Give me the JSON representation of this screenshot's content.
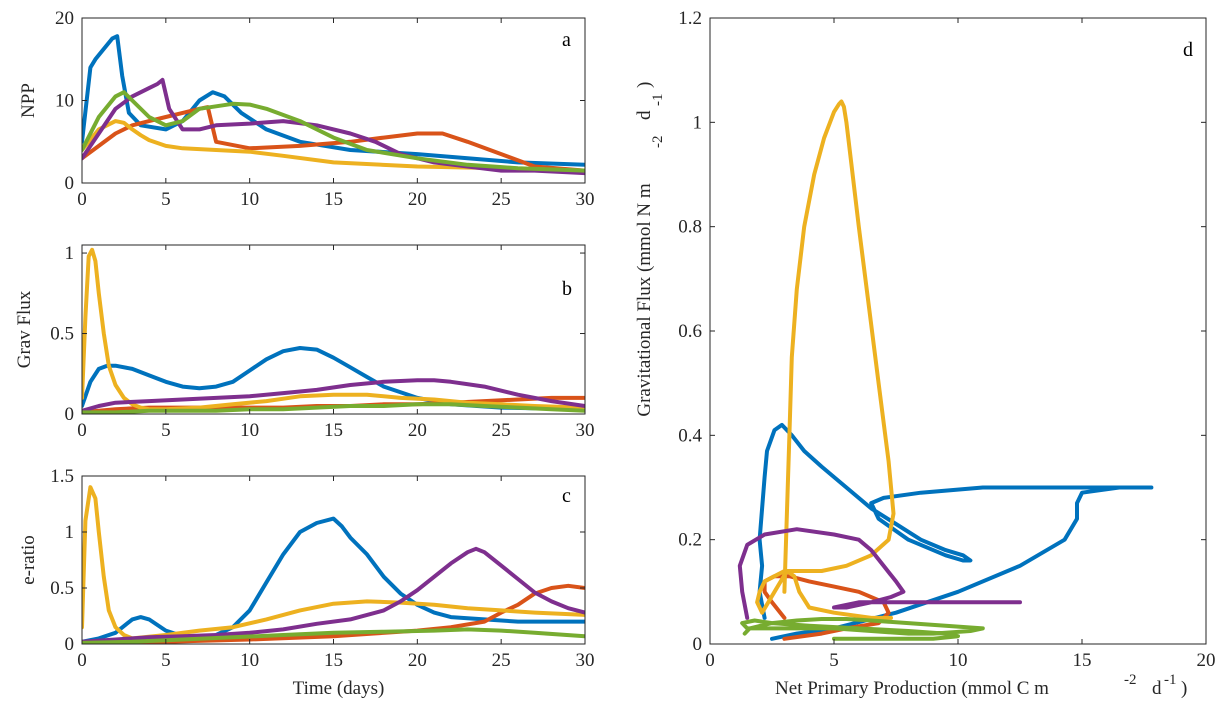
{
  "colors": {
    "blue": "#0072BD",
    "orange": "#D95319",
    "yellow": "#EDB120",
    "purple": "#7E2F8E",
    "green": "#77AC30"
  },
  "chart_data": [
    {
      "id": "a",
      "type": "line",
      "panel_label": "a",
      "ylabel": "NPP",
      "xlabel": "",
      "xlim": [
        0,
        30
      ],
      "ylim": [
        0,
        20
      ],
      "xticks": [
        0,
        5,
        10,
        15,
        20,
        25,
        30
      ],
      "yticks": [
        0,
        10,
        20
      ],
      "series": [
        {
          "color": "blue",
          "x": [
            0,
            0.5,
            0.8,
            1.2,
            1.8,
            2.1,
            2.4,
            2.8,
            3.5,
            5,
            6,
            7,
            7.8,
            8.5,
            9.5,
            11,
            13,
            16,
            20,
            23,
            26,
            30
          ],
          "y": [
            5,
            14,
            15,
            16,
            17.5,
            17.8,
            13,
            8.5,
            7,
            6.5,
            7.5,
            10,
            11,
            10.5,
            8.5,
            6.5,
            5,
            4,
            3.5,
            3,
            2.5,
            2.2
          ]
        },
        {
          "color": "orange",
          "x": [
            0,
            1,
            2,
            3,
            4,
            5,
            6,
            7,
            7.5,
            8,
            10,
            13,
            16,
            18,
            20,
            21.5,
            23,
            25,
            27,
            30
          ],
          "y": [
            3,
            4.5,
            6,
            7,
            7.5,
            8,
            8.5,
            9,
            9.2,
            5,
            4.2,
            4.5,
            5,
            5.5,
            6,
            6,
            5,
            3.5,
            2,
            1.5
          ]
        },
        {
          "color": "yellow",
          "x": [
            0,
            1,
            2,
            2.5,
            3,
            3.5,
            4,
            5,
            6,
            8,
            10,
            12,
            15,
            20,
            25,
            30
          ],
          "y": [
            4,
            6.5,
            7.5,
            7.3,
            6.5,
            5.8,
            5.2,
            4.5,
            4.2,
            4,
            3.8,
            3.3,
            2.5,
            2,
            1.8,
            1.5
          ]
        },
        {
          "color": "purple",
          "x": [
            0,
            1,
            2,
            3,
            4,
            4.5,
            4.8,
            5.2,
            6,
            7,
            8,
            10,
            12,
            14,
            16,
            17.5,
            19,
            21,
            23,
            25,
            27,
            30
          ],
          "y": [
            3,
            6,
            9,
            10.5,
            11.5,
            12,
            12.5,
            9,
            6.5,
            6.5,
            7,
            7.2,
            7.5,
            7,
            6,
            5,
            3.5,
            2.5,
            2,
            1.5,
            1.5,
            1.2
          ]
        },
        {
          "color": "green",
          "x": [
            0,
            1,
            2,
            2.5,
            3,
            4,
            5,
            6,
            7,
            8,
            9,
            10,
            11,
            13,
            15,
            17,
            20,
            23,
            26,
            30
          ],
          "y": [
            4,
            8,
            10.5,
            11,
            10,
            8,
            7,
            7.5,
            9,
            9.3,
            9.6,
            9.5,
            9,
            7.5,
            5.5,
            4,
            3,
            2.2,
            1.8,
            1.5
          ]
        }
      ]
    },
    {
      "id": "b",
      "type": "line",
      "panel_label": "b",
      "ylabel": "Grav Flux",
      "xlabel": "",
      "xlim": [
        0,
        30
      ],
      "ylim": [
        0,
        1.05
      ],
      "xticks": [
        0,
        5,
        10,
        15,
        20,
        25,
        30
      ],
      "yticks": [
        0,
        0.5,
        1
      ],
      "series": [
        {
          "color": "blue",
          "x": [
            0,
            0.5,
            1,
            1.5,
            2,
            3,
            4,
            5,
            6,
            7,
            8,
            9,
            10,
            11,
            12,
            13,
            14,
            15,
            16,
            17,
            18,
            20,
            22,
            25,
            30
          ],
          "y": [
            0.05,
            0.2,
            0.28,
            0.3,
            0.3,
            0.28,
            0.24,
            0.2,
            0.17,
            0.16,
            0.17,
            0.2,
            0.27,
            0.34,
            0.39,
            0.41,
            0.4,
            0.35,
            0.29,
            0.23,
            0.17,
            0.1,
            0.06,
            0.04,
            0.03
          ]
        },
        {
          "color": "orange",
          "x": [
            0,
            1,
            2,
            4,
            6,
            8,
            10,
            12,
            14,
            16,
            18,
            20,
            22,
            24,
            26,
            28,
            30
          ],
          "y": [
            0.01,
            0.02,
            0.03,
            0.04,
            0.04,
            0.04,
            0.04,
            0.04,
            0.05,
            0.05,
            0.06,
            0.06,
            0.07,
            0.08,
            0.09,
            0.1,
            0.1
          ]
        },
        {
          "color": "yellow",
          "x": [
            0,
            0.2,
            0.4,
            0.6,
            0.8,
            1,
            1.3,
            1.6,
            2,
            2.5,
            3,
            3.5,
            4,
            5,
            7,
            9,
            11,
            13,
            15,
            17,
            19,
            21,
            23,
            25,
            27,
            30
          ],
          "y": [
            0.1,
            0.6,
            0.98,
            1.02,
            0.95,
            0.75,
            0.5,
            0.3,
            0.18,
            0.1,
            0.06,
            0.04,
            0.03,
            0.03,
            0.04,
            0.06,
            0.08,
            0.11,
            0.12,
            0.12,
            0.1,
            0.09,
            0.07,
            0.06,
            0.05,
            0.04
          ]
        },
        {
          "color": "purple",
          "x": [
            0,
            1,
            2,
            4,
            6,
            8,
            10,
            12,
            14,
            16,
            18,
            20,
            21,
            22,
            24,
            26,
            28,
            30
          ],
          "y": [
            0.02,
            0.05,
            0.07,
            0.08,
            0.09,
            0.1,
            0.11,
            0.13,
            0.15,
            0.18,
            0.2,
            0.21,
            0.21,
            0.2,
            0.17,
            0.12,
            0.08,
            0.05
          ]
        },
        {
          "color": "green",
          "x": [
            0,
            2,
            4,
            6,
            8,
            10,
            12,
            14,
            16,
            18,
            20,
            22,
            24,
            26,
            28,
            30
          ],
          "y": [
            0.01,
            0.01,
            0.02,
            0.02,
            0.02,
            0.03,
            0.03,
            0.04,
            0.05,
            0.05,
            0.06,
            0.06,
            0.05,
            0.04,
            0.03,
            0.02
          ]
        }
      ]
    },
    {
      "id": "c",
      "type": "line",
      "panel_label": "c",
      "ylabel": "e-ratio",
      "xlabel": "Time (days)",
      "xlim": [
        0,
        30
      ],
      "ylim": [
        0,
        1.5
      ],
      "xticks": [
        0,
        5,
        10,
        15,
        20,
        25,
        30
      ],
      "yticks": [
        0,
        0.5,
        1,
        1.5
      ],
      "series": [
        {
          "color": "blue",
          "x": [
            0,
            1,
            2,
            3,
            3.5,
            4,
            5,
            6,
            7,
            8,
            9,
            10,
            11,
            12,
            13,
            14,
            15,
            15.5,
            16,
            17,
            18,
            19,
            20,
            21,
            22,
            24,
            26,
            28,
            30
          ],
          "y": [
            0.02,
            0.05,
            0.1,
            0.22,
            0.24,
            0.22,
            0.12,
            0.07,
            0.05,
            0.08,
            0.15,
            0.3,
            0.55,
            0.8,
            1.0,
            1.08,
            1.12,
            1.05,
            0.95,
            0.8,
            0.6,
            0.45,
            0.35,
            0.28,
            0.24,
            0.22,
            0.2,
            0.2,
            0.2
          ]
        },
        {
          "color": "orange",
          "x": [
            0,
            5,
            10,
            15,
            20,
            22,
            24,
            25,
            26,
            27,
            28,
            29,
            30
          ],
          "y": [
            0.01,
            0.02,
            0.04,
            0.07,
            0.12,
            0.15,
            0.2,
            0.28,
            0.35,
            0.45,
            0.5,
            0.52,
            0.5
          ]
        },
        {
          "color": "yellow",
          "x": [
            0,
            0.2,
            0.5,
            0.8,
            1,
            1.3,
            1.6,
            2,
            2.5,
            3,
            5,
            7,
            9,
            11,
            13,
            15,
            17,
            19,
            21,
            23,
            25,
            27,
            30
          ],
          "y": [
            0.15,
            1.1,
            1.4,
            1.3,
            1.0,
            0.6,
            0.3,
            0.15,
            0.08,
            0.05,
            0.08,
            0.12,
            0.15,
            0.22,
            0.3,
            0.36,
            0.38,
            0.37,
            0.35,
            0.32,
            0.3,
            0.28,
            0.26
          ]
        },
        {
          "color": "purple",
          "x": [
            0,
            2,
            4,
            6,
            8,
            10,
            12,
            14,
            16,
            18,
            19,
            20,
            21,
            22,
            23,
            23.5,
            24,
            25,
            26,
            27,
            28,
            29,
            30
          ],
          "y": [
            0.02,
            0.04,
            0.06,
            0.07,
            0.08,
            0.1,
            0.13,
            0.18,
            0.22,
            0.3,
            0.38,
            0.48,
            0.6,
            0.72,
            0.82,
            0.85,
            0.82,
            0.7,
            0.58,
            0.46,
            0.38,
            0.32,
            0.28
          ]
        },
        {
          "color": "green",
          "x": [
            0,
            3,
            6,
            9,
            12,
            15,
            18,
            21,
            23,
            25,
            27,
            30
          ],
          "y": [
            0.01,
            0.02,
            0.04,
            0.06,
            0.08,
            0.1,
            0.11,
            0.12,
            0.13,
            0.12,
            0.1,
            0.07
          ]
        }
      ]
    },
    {
      "id": "d",
      "type": "line",
      "panel_label": "d",
      "xlabel": "Net Primary Production (mmol C m",
      "ylabel": "Gravitational Flux (mmol N m",
      "xlim": [
        0,
        20
      ],
      "ylim": [
        0,
        1.2
      ],
      "xticks": [
        0,
        5,
        10,
        15,
        20
      ],
      "yticks": [
        0,
        0.2,
        0.4,
        0.6,
        0.8,
        1,
        1.2
      ],
      "series": [
        {
          "color": "blue",
          "x": [
            2.2,
            2.0,
            2.1,
            2.0,
            2.1,
            2.2,
            2.3,
            2.6,
            2.9,
            3.1,
            3.3,
            3.8,
            4.5,
            5.5,
            6.5,
            7.5,
            8.5,
            9.5,
            10.2,
            10.5,
            10.2,
            9.5,
            8.0,
            6.8,
            6.5,
            7.0,
            8.5,
            11.0,
            14.0,
            16.5,
            17.8,
            17.5,
            16.5,
            15.0,
            14.8,
            14.8,
            14.3,
            12.5,
            10.0,
            7.5,
            5.0,
            3.5,
            2.5
          ],
          "y": [
            0.05,
            0.1,
            0.15,
            0.2,
            0.26,
            0.32,
            0.37,
            0.41,
            0.42,
            0.41,
            0.4,
            0.37,
            0.34,
            0.3,
            0.26,
            0.23,
            0.2,
            0.18,
            0.17,
            0.16,
            0.16,
            0.17,
            0.2,
            0.24,
            0.27,
            0.28,
            0.29,
            0.3,
            0.3,
            0.3,
            0.3,
            0.3,
            0.3,
            0.29,
            0.27,
            0.24,
            0.2,
            0.15,
            0.1,
            0.06,
            0.03,
            0.02,
            0.01
          ]
        },
        {
          "color": "orange",
          "x": [
            3.0,
            2.5,
            2.2,
            2.2,
            2.6,
            3.2,
            4.0,
            5.0,
            6.0,
            7.0,
            7.2,
            6.8,
            5.5,
            4.5,
            3.0
          ],
          "y": [
            0.05,
            0.08,
            0.1,
            0.12,
            0.13,
            0.13,
            0.12,
            0.11,
            0.1,
            0.08,
            0.06,
            0.04,
            0.03,
            0.02,
            0.01
          ]
        },
        {
          "color": "yellow",
          "x": [
            3.0,
            3.1,
            3.2,
            3.3,
            3.5,
            3.8,
            4.2,
            4.6,
            5.0,
            5.2,
            5.3,
            5.4,
            5.5,
            5.7,
            6.0,
            6.4,
            6.8,
            7.2,
            7.4,
            7.2,
            6.5,
            5.5,
            4.5,
            3.5,
            3.0,
            2.6,
            2.2,
            2.0,
            1.9,
            2.1,
            2.6,
            3.1,
            3.4,
            3.6,
            4.0,
            5.0,
            6.5,
            7.3
          ],
          "y": [
            0.1,
            0.25,
            0.4,
            0.55,
            0.68,
            0.8,
            0.9,
            0.97,
            1.02,
            1.035,
            1.04,
            1.03,
            1.0,
            0.92,
            0.8,
            0.65,
            0.5,
            0.35,
            0.25,
            0.2,
            0.17,
            0.15,
            0.14,
            0.14,
            0.14,
            0.13,
            0.12,
            0.1,
            0.08,
            0.06,
            0.1,
            0.14,
            0.13,
            0.1,
            0.07,
            0.06,
            0.05,
            0.05
          ]
        },
        {
          "color": "purple",
          "x": [
            1.5,
            1.3,
            1.2,
            1.5,
            2.2,
            3.5,
            5.0,
            6.0,
            6.5,
            7.0,
            7.5,
            7.8,
            7.3,
            6.5,
            5.5,
            5.0,
            6.0,
            8.0,
            10.0,
            12.5
          ],
          "y": [
            0.05,
            0.1,
            0.15,
            0.19,
            0.21,
            0.22,
            0.21,
            0.2,
            0.18,
            0.15,
            0.12,
            0.1,
            0.09,
            0.08,
            0.07,
            0.07,
            0.08,
            0.08,
            0.08,
            0.08
          ]
        },
        {
          "color": "green",
          "x": [
            1.4,
            1.6,
            2.5,
            3.5,
            4.5,
            5.5,
            6.5,
            8.0,
            9.5,
            11.0,
            10.5,
            9.0,
            8.0,
            6.5,
            5.0,
            3.5,
            2.5,
            1.5,
            1.3,
            1.8,
            2.5,
            4.0,
            6.0,
            8.0,
            9.5,
            10.0,
            9.0,
            7.0,
            5.0
          ],
          "y": [
            0.02,
            0.03,
            0.04,
            0.045,
            0.048,
            0.048,
            0.045,
            0.04,
            0.035,
            0.03,
            0.025,
            0.02,
            0.02,
            0.025,
            0.03,
            0.03,
            0.03,
            0.03,
            0.04,
            0.045,
            0.04,
            0.035,
            0.03,
            0.025,
            0.02,
            0.015,
            0.01,
            0.01,
            0.01
          ]
        }
      ]
    }
  ]
}
